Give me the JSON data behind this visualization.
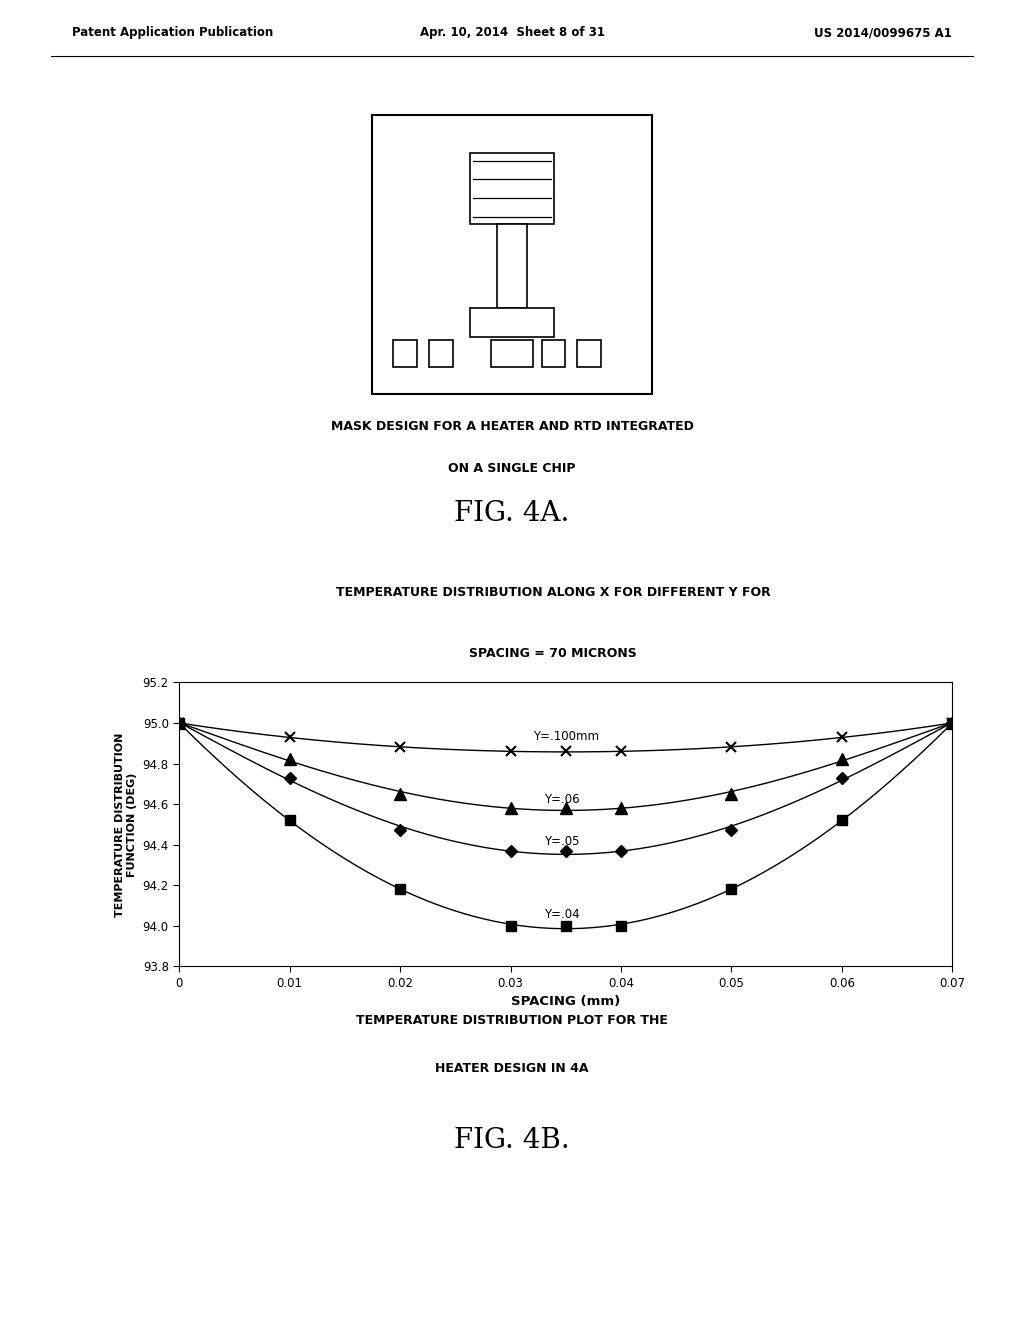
{
  "header_left": "Patent Application Publication",
  "header_mid": "Apr. 10, 2014  Sheet 8 of 31",
  "header_right": "US 2014/0099675 A1",
  "fig4a_caption1": "MASK DESIGN FOR A HEATER AND RTD INTEGRATED",
  "fig4a_caption2": "ON A SINGLE CHIP",
  "fig4a_label": "FIG. 4A.",
  "chart_title1": "TEMPERATURE DISTRIBUTION ALONG X FOR DIFFERENT Y FOR",
  "chart_title2": "SPACING = 70 MICRONS",
  "xlabel": "SPACING (mm)",
  "ylabel_line1": "TEMPERATURE DISTRIBUTION",
  "ylabel_line2": "FUNCTION (DEG)",
  "ylim": [
    93.8,
    95.2
  ],
  "xlim": [
    0,
    0.07
  ],
  "xticks": [
    0,
    0.01,
    0.02,
    0.03,
    0.04,
    0.05,
    0.06,
    0.07
  ],
  "yticks": [
    93.8,
    94,
    94.2,
    94.4,
    94.6,
    94.8,
    95,
    95.2
  ],
  "series": [
    {
      "label": "Y=.100mm",
      "marker": "x",
      "x": [
        0,
        0.01,
        0.02,
        0.03,
        0.035,
        0.04,
        0.05,
        0.06,
        0.07
      ],
      "y": [
        95.0,
        94.93,
        94.88,
        94.86,
        94.86,
        94.86,
        94.88,
        94.93,
        95.0
      ]
    },
    {
      "label": "Y=.06",
      "marker": "^",
      "x": [
        0,
        0.01,
        0.02,
        0.03,
        0.035,
        0.04,
        0.05,
        0.06,
        0.07
      ],
      "y": [
        95.0,
        94.82,
        94.65,
        94.58,
        94.58,
        94.58,
        94.65,
        94.82,
        95.0
      ]
    },
    {
      "label": "Y=.05",
      "marker": "D",
      "x": [
        0,
        0.01,
        0.02,
        0.03,
        0.035,
        0.04,
        0.05,
        0.06,
        0.07
      ],
      "y": [
        95.0,
        94.73,
        94.47,
        94.37,
        94.37,
        94.37,
        94.47,
        94.73,
        95.0
      ]
    },
    {
      "label": "Y=.04",
      "marker": "s",
      "x": [
        0,
        0.01,
        0.02,
        0.03,
        0.035,
        0.04,
        0.05,
        0.06,
        0.07
      ],
      "y": [
        95.0,
        94.52,
        94.18,
        94.0,
        94.0,
        94.0,
        94.18,
        94.52,
        95.0
      ]
    }
  ],
  "fig4b_caption1": "TEMPERATURE DISTRIBUTION PLOT FOR THE",
  "fig4b_caption2": "HEATER DESIGN IN 4A",
  "fig4b_label": "FIG. 4B.",
  "bg_color": "#ffffff",
  "line_color": "#000000"
}
